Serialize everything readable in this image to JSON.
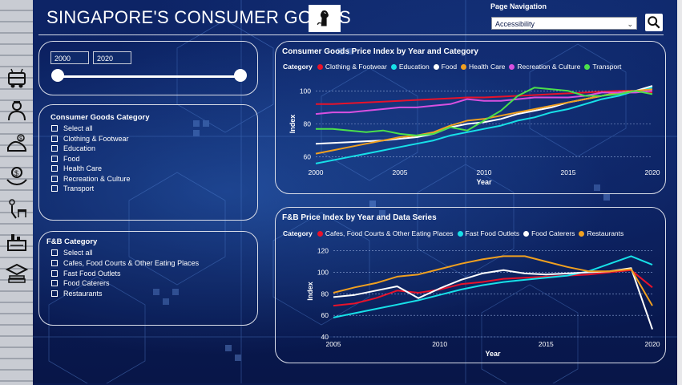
{
  "header": {
    "title": "SINGAPORE'S CONSUMER GOODS",
    "page_nav_label": "Page Navigation",
    "page_nav_value": "Accessibility"
  },
  "nav_icons": [
    "transport-icon",
    "doctor-icon",
    "food-icon",
    "health-care-icon",
    "recreation-icon",
    "clothing-icon",
    "education-icon"
  ],
  "year_filter": {
    "start": "2000",
    "end": "2020",
    "min": 2000,
    "max": 2020,
    "range": [
      2000,
      2020
    ]
  },
  "consumer_filter": {
    "title": "Consumer Goods Category",
    "items": [
      "Select all",
      "Clothing & Footwear",
      "Education",
      "Food",
      "Health Care",
      "Recreation & Culture",
      "Transport"
    ]
  },
  "fb_filter": {
    "title": "F&B Category",
    "items": [
      "Select all",
      "Cafes, Food Courts & Other Eating Places",
      "Fast Food Outlets",
      "Food Caterers",
      "Restaurants"
    ]
  },
  "chart_data": [
    {
      "type": "line",
      "title": "Consumer Goods Price Index by Year and Category",
      "legend_title": "Category",
      "xlabel": "Year",
      "ylabel": "Index",
      "xlim": [
        2000,
        2020
      ],
      "ylim": [
        55,
        105
      ],
      "yticks": [
        60,
        80,
        100
      ],
      "xticks": [
        2000,
        2005,
        2010,
        2015,
        2020
      ],
      "x": [
        2000,
        2001,
        2002,
        2003,
        2004,
        2005,
        2006,
        2007,
        2008,
        2009,
        2010,
        2011,
        2012,
        2013,
        2014,
        2015,
        2016,
        2017,
        2018,
        2019,
        2020
      ],
      "series": [
        {
          "name": "Clothing & Footwear",
          "color": "#e8122a",
          "values": [
            92,
            92,
            92.5,
            93,
            93.5,
            94,
            94.5,
            95,
            95.5,
            96,
            96,
            96.5,
            97,
            97.5,
            98,
            98.5,
            99,
            99.5,
            100,
            100,
            99
          ]
        },
        {
          "name": "Education",
          "color": "#17e0e8",
          "values": [
            56,
            58,
            60,
            62,
            64,
            66,
            68,
            70,
            73,
            75,
            77,
            79,
            82,
            84,
            87,
            89,
            92,
            95,
            97,
            100,
            102
          ]
        },
        {
          "name": "Food",
          "color": "#ffffff",
          "values": [
            68,
            68.5,
            69,
            69.5,
            70,
            71,
            72,
            74,
            78,
            80,
            81,
            83,
            86,
            88,
            90,
            93,
            95,
            97,
            99,
            100,
            103
          ]
        },
        {
          "name": "Health Care",
          "color": "#f0a020",
          "values": [
            62,
            64,
            66,
            68,
            70,
            72,
            73,
            75,
            79,
            82,
            83,
            85,
            87,
            89,
            91,
            93,
            95,
            97,
            99,
            100,
            101
          ]
        },
        {
          "name": "Recreation & Culture",
          "color": "#d850e0",
          "values": [
            86,
            87,
            87,
            88,
            89,
            90,
            90,
            91,
            92,
            95,
            94,
            94,
            95,
            96,
            96,
            96,
            97,
            99,
            99,
            99,
            100
          ]
        },
        {
          "name": "Transport",
          "color": "#4be04b",
          "values": [
            77,
            77,
            76,
            75,
            76,
            74,
            73,
            74,
            78,
            76,
            82,
            88,
            97,
            102,
            101,
            100,
            97,
            97,
            98,
            100,
            98
          ]
        }
      ]
    },
    {
      "type": "line",
      "title": "F&B Price Index by Year and Data Series",
      "legend_title": "Category",
      "xlabel": "Year",
      "ylabel": "Index",
      "xlim": [
        2005,
        2020
      ],
      "ylim": [
        40,
        125
      ],
      "yticks": [
        40,
        60,
        80,
        100,
        120
      ],
      "xticks": [
        2005,
        2010,
        2015,
        2020
      ],
      "x": [
        2005,
        2006,
        2007,
        2008,
        2009,
        2010,
        2011,
        2012,
        2013,
        2014,
        2015,
        2016,
        2017,
        2018,
        2019,
        2020
      ],
      "series": [
        {
          "name": "Cafes, Food Courts & Other Eating Places",
          "color": "#e8122a",
          "values": [
            69,
            71,
            76,
            83,
            81,
            84,
            89,
            91,
            94,
            95,
            96,
            97,
            98,
            100,
            102,
            86
          ]
        },
        {
          "name": "Fast Food Outlets",
          "color": "#17e0e8",
          "values": [
            58,
            62,
            66,
            70,
            74,
            79,
            84,
            88,
            91,
            93,
            95,
            97,
            101,
            108,
            115,
            107
          ]
        },
        {
          "name": "Food Caterers",
          "color": "#ffffff",
          "values": [
            77,
            79,
            83,
            87,
            76,
            85,
            93,
            99,
            102,
            99,
            98,
            99,
            100,
            101,
            104,
            47
          ]
        },
        {
          "name": "Restaurants",
          "color": "#f0a020",
          "values": [
            81,
            86,
            90,
            96,
            98,
            103,
            108,
            112,
            115,
            115,
            110,
            105,
            101,
            101,
            103,
            69
          ]
        }
      ]
    }
  ]
}
